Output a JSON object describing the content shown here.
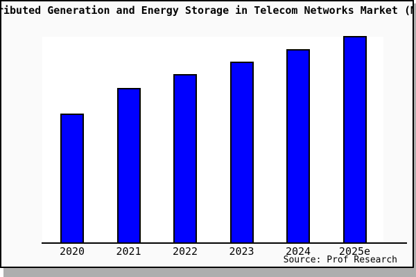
{
  "window": {
    "title_visible": "ributed Generation and Energy Storage in Telecom Networks Market (M"
  },
  "source": {
    "label": "Source: Prof Research"
  },
  "chart_data": {
    "type": "bar",
    "title": "ributed Generation and Energy Storage in Telecom Networks Market (M",
    "categories": [
      "2020",
      "2021",
      "2022",
      "2023",
      "2024",
      "2025e"
    ],
    "values": [
      62.7,
      75.0,
      81.7,
      87.7,
      93.7,
      100.0
    ],
    "values_note": "no y-axis labels shown; values estimated as percent of tallest (2025e) bar",
    "xlabel": "",
    "ylabel": "",
    "ylim": [
      0,
      100
    ],
    "grid": false,
    "legend": false,
    "bar_color": "#0000ff",
    "bar_border_color": "#000000",
    "plot_bg": "#ffffff",
    "fig_bg": "#fafafa",
    "source_text": "Source: Prof Research"
  }
}
